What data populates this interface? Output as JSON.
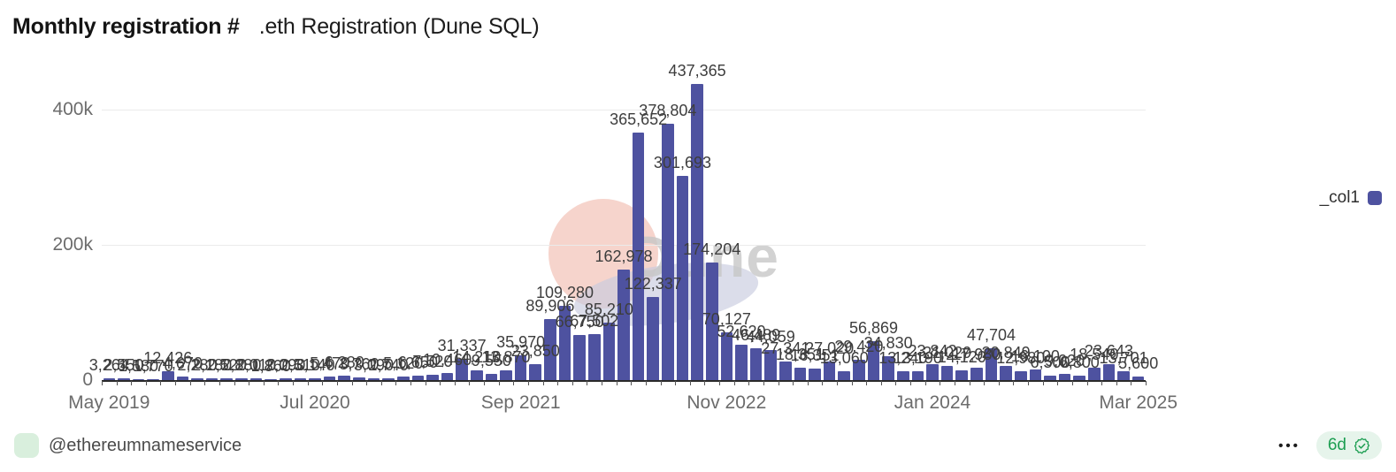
{
  "header": {
    "title_bold": "Monthly registration #",
    "title_rest": ".eth Registration (Dune SQL)"
  },
  "legend": {
    "label": "_col1",
    "color": "#4e52a0"
  },
  "watermark": {
    "text": "Dune"
  },
  "footer": {
    "author": "@ethereumnameservice",
    "menu": "•••",
    "badge_text": "6d"
  },
  "chart_data": {
    "type": "bar",
    "title": "Monthly registration # .eth Registration (Dune SQL)",
    "xlabel": "",
    "ylabel": "",
    "series_name": "_col1",
    "bar_color": "#4e52a0",
    "grid": true,
    "legend_position": "right",
    "data_labels": true,
    "ylim": [
      0,
      460000
    ],
    "y_ticks": [
      {
        "label": "0",
        "value": 0
      },
      {
        "label": "200k",
        "value": 200000
      },
      {
        "label": "400k",
        "value": 400000
      }
    ],
    "x_tick_labels": [
      "May 2019",
      "Jul 2020",
      "Sep 2021",
      "Nov 2022",
      "Jan 2024",
      "Mar 2025"
    ],
    "x_tick_indices": [
      0,
      14,
      28,
      42,
      56,
      70
    ],
    "categories": [
      "May 2019",
      "Jun 2019",
      "Jul 2019",
      "Aug 2019",
      "Sep 2019",
      "Oct 2019",
      "Nov 2019",
      "Dec 2019",
      "Jan 2020",
      "Feb 2020",
      "Mar 2020",
      "Apr 2020",
      "May 2020",
      "Jun 2020",
      "Jul 2020",
      "Aug 2020",
      "Sep 2020",
      "Oct 2020",
      "Nov 2020",
      "Dec 2020",
      "Jan 2021",
      "Feb 2021",
      "Mar 2021",
      "Apr 2021",
      "May 2021",
      "Jun 2021",
      "Jul 2021",
      "Aug 2021",
      "Sep 2021",
      "Oct 2021",
      "Nov 2021",
      "Dec 2021",
      "Jan 2022",
      "Feb 2022",
      "Mar 2022",
      "Apr 2022",
      "May 2022",
      "Jun 2022",
      "Jul 2022",
      "Aug 2022",
      "Sep 2022",
      "Oct 2022",
      "Nov 2022",
      "Dec 2022",
      "Jan 2023",
      "Feb 2023",
      "Mar 2023",
      "Apr 2023",
      "May 2023",
      "Jun 2023",
      "Jul 2023",
      "Aug 2023",
      "Sep 2023",
      "Oct 2023",
      "Nov 2023",
      "Dec 2023",
      "Jan 2024",
      "Feb 2024",
      "Mar 2024",
      "Apr 2024",
      "May 2024",
      "Jun 2024",
      "Jul 2024",
      "Aug 2024",
      "Sep 2024",
      "Oct 2024",
      "Nov 2024",
      "Dec 2024",
      "Jan 2025",
      "Feb 2025",
      "Mar 2025"
    ],
    "values": [
      3264,
      2550,
      1580,
      1770,
      12426,
      4670,
      2280,
      2180,
      2520,
      2880,
      2010,
      1860,
      2090,
      2510,
      3140,
      5470,
      6280,
      3760,
      3090,
      2740,
      5120,
      6650,
      7520,
      10460,
      31337,
      14210,
      9550,
      13870,
      35970,
      23850,
      89906,
      109280,
      66750,
      67502,
      85210,
      162978,
      365652,
      122337,
      378804,
      301693,
      437365,
      174204,
      70127,
      52620,
      46489,
      44059,
      27341,
      18351,
      16351,
      27020,
      13060,
      29420,
      56869,
      34830,
      13240,
      13190,
      23842,
      21029,
      14120,
      17980,
      47704,
      20849,
      12980,
      16100,
      6500,
      9020,
      6800,
      18540,
      23643,
      13701,
      5600
    ]
  }
}
